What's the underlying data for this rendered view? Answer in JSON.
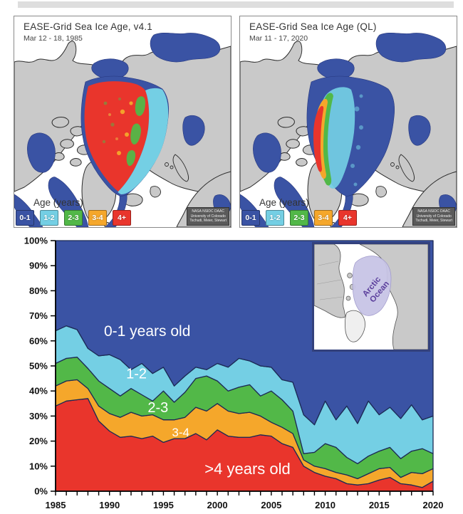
{
  "maps": {
    "panels": [
      {
        "title": "EASE-Grid Sea Ice Age, v4.1",
        "subtitle": "Mar 12 - 18, 1985"
      },
      {
        "title": "EASE-Grid Sea Ice Age (QL)",
        "subtitle": "Mar 11 - 17, 2020"
      }
    ],
    "legend": {
      "title": "Age (years)",
      "items": [
        {
          "label": "0-1",
          "color": "#3A53A4"
        },
        {
          "label": "1-2",
          "color": "#74CFE4"
        },
        {
          "label": "2-3",
          "color": "#52B848"
        },
        {
          "label": "3-4",
          "color": "#F5A72B"
        },
        {
          "label": "4+",
          "color": "#E9352C"
        }
      ]
    },
    "credit_lines": [
      "NASA NSIDC DAAC",
      "University of Colorado",
      "Tschudi, Meier, Stewart"
    ],
    "land_color": "#c9c9c9",
    "ocean_color": "#ffffff",
    "first_year_ice_color": "#3A53A4"
  },
  "inset": {
    "label_line1": "Arctic",
    "label_line2": "Ocean",
    "region_color": "#c8c5e6",
    "label_color": "#5b3f9c"
  },
  "chart_data": {
    "type": "area",
    "stacked": true,
    "title": "",
    "xlabel": "",
    "ylabel": "",
    "ylim": [
      0,
      100
    ],
    "grid": false,
    "legend_position": "labels-on-areas",
    "axis_color": "#000000",
    "boundary_color": "#1C2A55",
    "x": [
      1985,
      1986,
      1987,
      1988,
      1989,
      1990,
      1991,
      1992,
      1993,
      1994,
      1995,
      1996,
      1997,
      1998,
      1999,
      2000,
      2001,
      2002,
      2003,
      2004,
      2005,
      2006,
      2007,
      2008,
      2009,
      2010,
      2011,
      2012,
      2013,
      2014,
      2015,
      2016,
      2017,
      2018,
      2019,
      2020
    ],
    "xticks": [
      1985,
      1990,
      1995,
      2000,
      2005,
      2010,
      2015,
      2020
    ],
    "yticks_percent": [
      0,
      10,
      20,
      30,
      40,
      50,
      60,
      70,
      80,
      90,
      100
    ],
    "series": [
      {
        "name": ">4 years old",
        "color": "#E9352C",
        "values": [
          34,
          36,
          36.5,
          37,
          28,
          24,
          21.5,
          22,
          21,
          22,
          19.5,
          21,
          21,
          23,
          20.5,
          24.5,
          22,
          21.5,
          21.5,
          22.5,
          22,
          19,
          17.5,
          10,
          7.5,
          6,
          5,
          3,
          2.5,
          3,
          4.5,
          5.5,
          3,
          2.5,
          1.5,
          4
        ]
      },
      {
        "name": "3-4",
        "color": "#F5A72B",
        "values": [
          8,
          8,
          8,
          4,
          6,
          7,
          8,
          9.5,
          9,
          8.5,
          9,
          7.5,
          8.5,
          10.5,
          11.5,
          10.5,
          10,
          9.5,
          10,
          7.5,
          5.5,
          6.5,
          5.5,
          2.5,
          2.5,
          3,
          2.5,
          3.5,
          2.5,
          4,
          4.5,
          4,
          2.5,
          5,
          5.5,
          5
        ]
      },
      {
        "name": "2-3",
        "color": "#52B848",
        "values": [
          9,
          9,
          9,
          8,
          10,
          10,
          8.5,
          9.5,
          8.5,
          5.5,
          11.5,
          7,
          10,
          11.5,
          14,
          9,
          8,
          10.5,
          11,
          8,
          12.5,
          11,
          9,
          2.5,
          5.5,
          10,
          10,
          7,
          6,
          7,
          7,
          8,
          7.5,
          8.5,
          10,
          6
        ]
      },
      {
        "name": "1-2",
        "color": "#74CFE4",
        "values": [
          13,
          13,
          11,
          8,
          10,
          13.5,
          14.5,
          7.5,
          12.5,
          11,
          9.5,
          6.5,
          6.5,
          4.5,
          2.5,
          7,
          9.5,
          11.5,
          9.5,
          12,
          9.5,
          8,
          11.5,
          15.5,
          11,
          17,
          11,
          20.5,
          16,
          22,
          14.5,
          16,
          16,
          18.5,
          11.5,
          15
        ]
      },
      {
        "name": "0-1 years old",
        "color": "#3A53A4",
        "values": [
          36,
          34,
          35.5,
          43,
          46,
          45.5,
          47.5,
          51.5,
          49,
          53,
          50.5,
          58,
          54,
          50.5,
          51.5,
          49,
          50.5,
          47,
          48,
          50,
          50.5,
          55.5,
          56.5,
          69.5,
          73.5,
          64,
          71.5,
          66,
          73,
          64,
          69.5,
          66.5,
          71,
          65.5,
          71.5,
          70
        ]
      }
    ],
    "area_labels": [
      {
        "text": "0-1 years old",
        "year": 1993.5,
        "percent": 64,
        "size": 21
      },
      {
        "text": "1-2",
        "year": 1992.5,
        "percent": 47,
        "size": 20
      },
      {
        "text": "2-3",
        "year": 1994.5,
        "percent": 33.5,
        "size": 20
      },
      {
        "text": "3-4",
        "year": 1996.6,
        "percent": 23.5,
        "size": 17
      },
      {
        "text": ">4 years old",
        "year": 2002.8,
        "percent": 9,
        "size": 22
      }
    ]
  }
}
